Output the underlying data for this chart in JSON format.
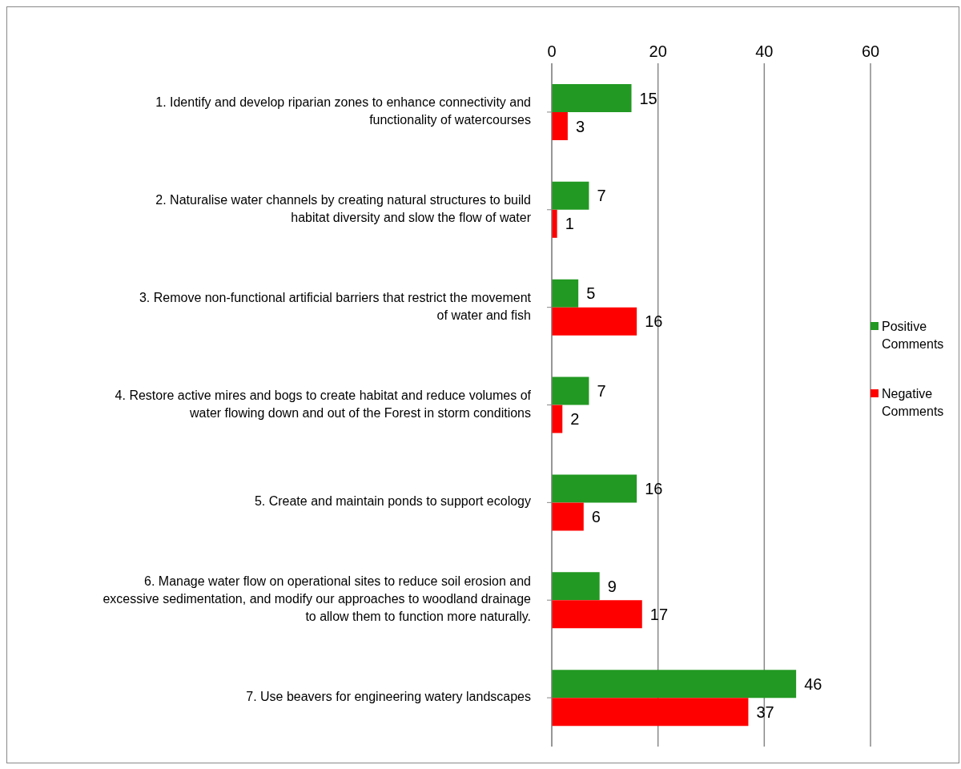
{
  "chart_data": {
    "type": "bar",
    "orientation": "horizontal",
    "categories": [
      "1. Identify and develop riparian zones to enhance connectivity and functionality of watercourses",
      "2. Naturalise water channels by creating natural structures to build habitat diversity and slow the flow of water",
      "3. Remove non-functional artificial barriers that restrict the movement of water and fish",
      "4. Restore active mires and bogs to create habitat and reduce volumes of water flowing down and out of the Forest in storm conditions",
      "5. Create and maintain ponds to support ecology",
      "6. Manage water flow on operational sites to reduce soil erosion and excessive sedimentation, and modify our approaches to woodland drainage to allow them to function more naturally.",
      "7. Use beavers for engineering watery landscapes"
    ],
    "series": [
      {
        "name": "Positive Comments",
        "color": "#229922",
        "values": [
          15,
          7,
          5,
          7,
          16,
          9,
          46
        ]
      },
      {
        "name": "Negative Comments",
        "color": "#ff0000",
        "values": [
          3,
          1,
          16,
          2,
          6,
          17,
          37
        ]
      }
    ],
    "xlim": [
      0,
      60
    ],
    "xticks": [
      0,
      20,
      40,
      60
    ],
    "grid": "x",
    "legend": "right",
    "data_labels": true
  }
}
